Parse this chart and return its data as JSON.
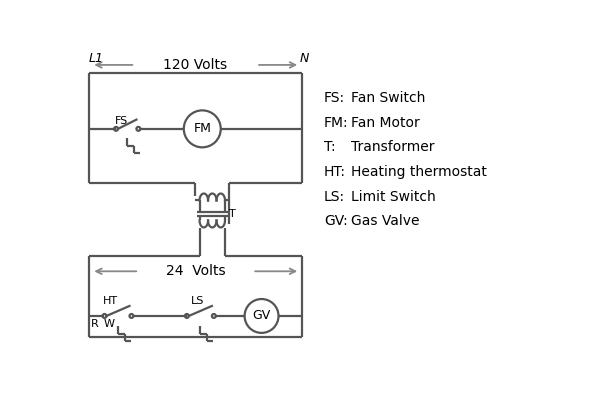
{
  "bg_color": "#ffffff",
  "line_color": "#555555",
  "text_color": "#000000",
  "legend_items": [
    [
      "FS:",
      "Fan Switch"
    ],
    [
      "FM:",
      "Fan Motor"
    ],
    [
      "T:",
      "Transformer"
    ],
    [
      "HT:",
      "Heating thermostat"
    ],
    [
      "LS:",
      "Limit Switch"
    ],
    [
      "GV:",
      "Gas Valve"
    ]
  ]
}
